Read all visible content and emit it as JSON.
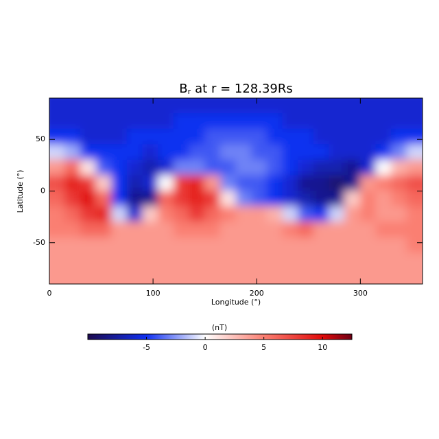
{
  "chart_data": {
    "type": "heatmap",
    "title_symbol": "B",
    "title_subscript": "r",
    "title_text": "at r = 128.39Rs",
    "x_label": "Longitude (°)",
    "y_label": "Latitude (°)",
    "xlim": [
      0,
      360
    ],
    "ylim": [
      -90,
      90
    ],
    "xticks": [
      0,
      100,
      200,
      300
    ],
    "yticks": [
      -50,
      0,
      50
    ],
    "x": [
      7.5,
      22.5,
      37.5,
      52.5,
      67.5,
      82.5,
      97.5,
      112.5,
      127.5,
      142.5,
      157.5,
      172.5,
      187.5,
      202.5,
      217.5,
      232.5,
      247.5,
      262.5,
      277.5,
      292.5,
      307.5,
      322.5,
      337.5,
      352.5
    ],
    "y": [
      82.5,
      67.5,
      52.5,
      37.5,
      22.5,
      7.5,
      -7.5,
      -22.5,
      -37.5,
      -52.5,
      -67.5,
      -82.5
    ],
    "z": [
      [
        -6,
        -6,
        -6,
        -6,
        -6,
        -6,
        -6,
        -6,
        -6,
        -6,
        -6,
        -6,
        -6,
        -6,
        -6,
        -6,
        -6,
        -6,
        -6,
        -6,
        -6,
        -6,
        -6,
        -6
      ],
      [
        -6,
        -6,
        -6,
        -6,
        -6,
        -6,
        -6,
        -6,
        -5,
        -5,
        -5,
        -5,
        -5,
        -5,
        -5,
        -6,
        -6,
        -6,
        -6,
        -6,
        -6,
        -6,
        -6,
        -6
      ],
      [
        -5,
        -5,
        -6,
        -6,
        -6,
        -5,
        -5,
        -5,
        -5,
        -5,
        -4,
        -4,
        -4,
        -4,
        -5,
        -5,
        -5,
        -6,
        -6,
        -6,
        -6,
        -6,
        -5,
        -5
      ],
      [
        -1,
        -2,
        -5,
        -5,
        -5,
        -5,
        -6,
        -5,
        -5,
        -4,
        -4,
        -3,
        -3,
        -4,
        -4,
        -5,
        -5,
        -5,
        -6,
        -6,
        -6,
        -5,
        -3,
        -1
      ],
      [
        4,
        6,
        1,
        -4,
        -5,
        -6,
        -7,
        -6,
        -3,
        -3,
        -4,
        -4,
        -3,
        -3,
        -4,
        -5,
        -6,
        -7,
        -7,
        -8,
        -6,
        0,
        3,
        4
      ],
      [
        7,
        9,
        8,
        2,
        -5,
        -7,
        -6,
        0,
        8,
        9,
        4,
        -3,
        -4,
        -4,
        -5,
        -6,
        -8,
        -8,
        -9,
        -8,
        4,
        5,
        6,
        7
      ],
      [
        6,
        8,
        10,
        6,
        -5,
        -8,
        -8,
        6,
        8,
        9,
        8,
        1,
        -3,
        -4,
        -5,
        -6,
        -7,
        -8,
        -8,
        2,
        5,
        4,
        5,
        6
      ],
      [
        5,
        6,
        8,
        9,
        -1,
        -6,
        2,
        5,
        6,
        8,
        6,
        5,
        4,
        4,
        3,
        -1,
        -4,
        -5,
        -1,
        4,
        5,
        4,
        4,
        5
      ],
      [
        5,
        5,
        6,
        6,
        4,
        4,
        4,
        4,
        5,
        5,
        5,
        4,
        4,
        4,
        4,
        5,
        6,
        4,
        4,
        4,
        4,
        5,
        5,
        5
      ],
      [
        4,
        4,
        4,
        4,
        4,
        4,
        4,
        4,
        4,
        4,
        4,
        4,
        4,
        4,
        4,
        4,
        4,
        4,
        4,
        4,
        4,
        4,
        4,
        5
      ],
      [
        4,
        4,
        4,
        4,
        4,
        4,
        4,
        4,
        4,
        4,
        4,
        4,
        4,
        4,
        4,
        4,
        4,
        4,
        4,
        4,
        4,
        4,
        4,
        4
      ],
      [
        4,
        4,
        4,
        4,
        4,
        4,
        4,
        4,
        4,
        4,
        4,
        4,
        4,
        4,
        4,
        4,
        4,
        4,
        4,
        4,
        4,
        4,
        4,
        4
      ]
    ],
    "colorscale": [
      [
        -10,
        "#1c0a4e"
      ],
      [
        -5,
        "#1030f0"
      ],
      [
        0,
        "#ffffff"
      ],
      [
        5,
        "#fa7f72"
      ],
      [
        10,
        "#e00a0a"
      ],
      [
        12.5,
        "#6e0014"
      ]
    ],
    "clim": [
      -10,
      12.5
    ],
    "cticks": [
      -5,
      0,
      5,
      10
    ],
    "colorbar_label": "(nT)"
  }
}
